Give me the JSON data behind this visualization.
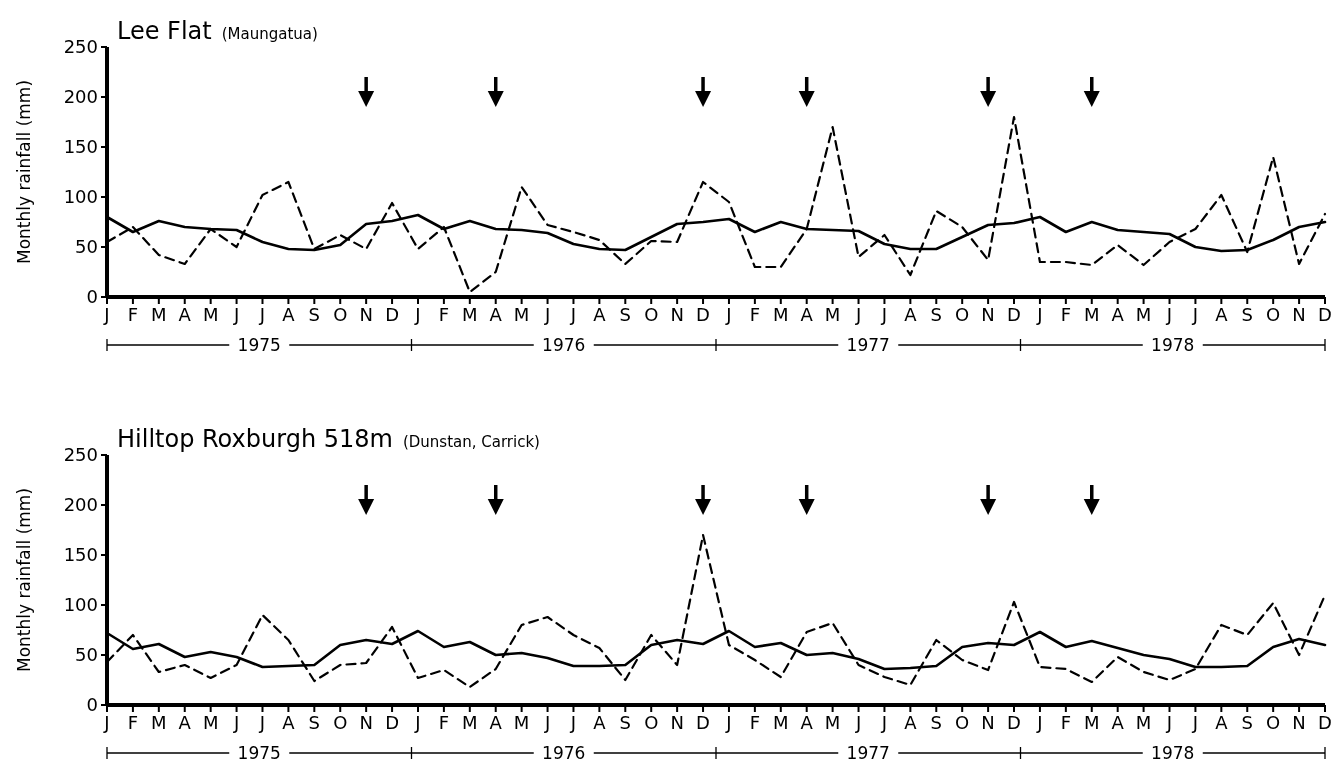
{
  "chart_data": [
    {
      "type": "line",
      "title": "Lee Flat",
      "subtitle": "(Maungatua)",
      "ylabel": "Monthly rainfall (mm)",
      "categories": [
        "J",
        "F",
        "M",
        "A",
        "M",
        "J",
        "J",
        "A",
        "S",
        "O",
        "N",
        "D",
        "J",
        "F",
        "M",
        "A",
        "M",
        "J",
        "J",
        "A",
        "S",
        "O",
        "N",
        "D",
        "J",
        "F",
        "M",
        "A",
        "M",
        "J",
        "J",
        "A",
        "S",
        "O",
        "N",
        "D",
        "J",
        "F",
        "M",
        "A",
        "M",
        "J",
        "J",
        "A",
        "S",
        "O",
        "N",
        "D"
      ],
      "ylim": [
        0,
        250
      ],
      "yticks": [
        0,
        50,
        100,
        150,
        200,
        250
      ],
      "series": [
        {
          "color": "#000000",
          "line_style": "solid",
          "values": [
            80,
            65,
            76,
            70,
            68,
            67,
            55,
            48,
            47,
            52,
            73,
            76,
            82,
            68,
            76,
            68,
            67,
            64,
            53,
            48,
            47,
            60,
            73,
            75,
            78,
            65,
            75,
            68,
            67,
            66,
            53,
            48,
            48,
            60,
            72,
            74,
            80,
            65,
            75,
            67,
            65,
            63,
            50,
            46,
            47,
            57,
            70,
            75
          ]
        },
        {
          "color": "#000000",
          "line_style": "dashed",
          "values": [
            55,
            70,
            42,
            33,
            68,
            50,
            102,
            115,
            48,
            62,
            48,
            94,
            48,
            70,
            5,
            25,
            110,
            72,
            65,
            57,
            33,
            56,
            55,
            115,
            95,
            30,
            30,
            68,
            170,
            40,
            62,
            22,
            86,
            70,
            37,
            180,
            35,
            35,
            32,
            52,
            32,
            55,
            68,
            102,
            45,
            140,
            33,
            83
          ]
        }
      ],
      "annotations": [
        "1975",
        "1976",
        "1977",
        "1978"
      ]
    },
    {
      "type": "line",
      "title": "Hilltop Roxburgh 518m",
      "subtitle": "(Dunstan, Carrick)",
      "ylabel": "Monthly rainfall (mm)",
      "categories": [
        "J",
        "F",
        "M",
        "A",
        "M",
        "J",
        "J",
        "A",
        "S",
        "O",
        "N",
        "D",
        "J",
        "F",
        "M",
        "A",
        "M",
        "J",
        "J",
        "A",
        "S",
        "O",
        "N",
        "D",
        "J",
        "F",
        "M",
        "A",
        "M",
        "J",
        "J",
        "A",
        "S",
        "O",
        "N",
        "D",
        "J",
        "F",
        "M",
        "A",
        "M",
        "J",
        "J",
        "A",
        "S",
        "O",
        "N",
        "D"
      ],
      "ylim": [
        0,
        250
      ],
      "yticks": [
        0,
        50,
        100,
        150,
        200,
        250
      ],
      "series": [
        {
          "color": "#000000",
          "line_style": "solid",
          "values": [
            72,
            56,
            61,
            48,
            53,
            48,
            38,
            39,
            40,
            60,
            65,
            61,
            74,
            58,
            63,
            50,
            52,
            47,
            39,
            39,
            40,
            60,
            65,
            61,
            74,
            58,
            62,
            50,
            52,
            46,
            36,
            37,
            39,
            58,
            62,
            60,
            73,
            58,
            64,
            57,
            50,
            46,
            38,
            38,
            39,
            58,
            66,
            60
          ]
        },
        {
          "color": "#000000",
          "line_style": "dashed",
          "values": [
            43,
            70,
            33,
            40,
            27,
            40,
            90,
            65,
            24,
            40,
            42,
            78,
            27,
            35,
            18,
            36,
            80,
            88,
            70,
            57,
            25,
            70,
            40,
            170,
            60,
            45,
            28,
            73,
            82,
            40,
            28,
            20,
            65,
            45,
            35,
            103,
            38,
            36,
            23,
            48,
            33,
            25,
            36,
            80,
            70,
            102,
            50,
            110
          ]
        }
      ],
      "annotations": [
        "1975",
        "1976",
        "1977",
        "1978"
      ]
    }
  ]
}
